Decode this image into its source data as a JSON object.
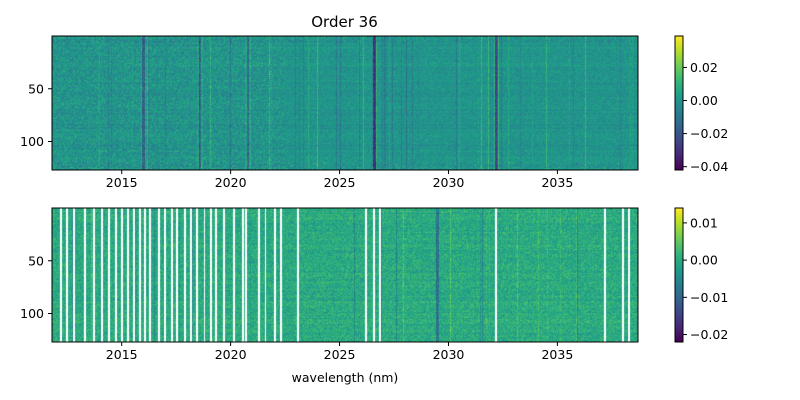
{
  "chart_data": [
    {
      "type": "heatmap",
      "title": "Order 36",
      "xlabel": "",
      "ylabel": "",
      "xlim": [
        2011.8,
        2038.7
      ],
      "ylim": [
        127,
        0
      ],
      "x_ticks": [
        2015,
        2020,
        2025,
        2030,
        2035
      ],
      "x_tick_labels": [
        "2015",
        "2020",
        "2025",
        "2030",
        "2035"
      ],
      "y_ticks": [
        50,
        100
      ],
      "y_tick_labels": [
        "50",
        "100"
      ],
      "colormap": "viridis",
      "colorbar": {
        "range": [
          -0.042,
          0.039
        ],
        "ticks": [
          0.02,
          0.0,
          -0.02,
          -0.04
        ],
        "tick_labels": [
          "0.02",
          "0.00",
          "−0.02",
          "−0.04"
        ]
      },
      "features": [
        {
          "wavelength": 2026.6,
          "strength": -0.035,
          "note": "strong absorption with bright edges"
        },
        {
          "wavelength": 2032.2,
          "strength": -0.03,
          "note": "strong absorption"
        },
        {
          "wavelength": 2016.0,
          "strength": -0.02,
          "note": "absorption"
        },
        {
          "wavelength": 2020.8,
          "strength": -0.015,
          "note": "absorption"
        },
        {
          "wavelength": 2018.6,
          "strength": -0.015,
          "note": "absorption"
        }
      ]
    },
    {
      "type": "heatmap",
      "title": "",
      "xlabel": "wavelength (nm)",
      "ylabel": "",
      "xlim": [
        2011.8,
        2038.7
      ],
      "ylim": [
        127,
        0
      ],
      "x_ticks": [
        2015,
        2020,
        2025,
        2030,
        2035
      ],
      "x_tick_labels": [
        "2015",
        "2020",
        "2025",
        "2030",
        "2035"
      ],
      "y_ticks": [
        50,
        100
      ],
      "y_tick_labels": [
        "50",
        "100"
      ],
      "colormap": "viridis",
      "colorbar": {
        "range": [
          -0.022,
          0.014
        ],
        "ticks": [
          0.01,
          0.0,
          -0.01,
          -0.02
        ],
        "tick_labels": [
          "0.01",
          "0.00",
          "−0.01",
          "−0.02"
        ]
      },
      "masked_wavelengths": [
        2012.2,
        2012.5,
        2012.8,
        2013.3,
        2013.75,
        2014.1,
        2014.4,
        2014.75,
        2015.0,
        2015.3,
        2015.55,
        2015.85,
        2016.05,
        2016.3,
        2016.7,
        2017.0,
        2017.3,
        2017.55,
        2017.9,
        2018.2,
        2018.45,
        2018.8,
        2019.1,
        2019.35,
        2019.7,
        2020.15,
        2020.55,
        2020.7,
        2021.3,
        2021.6,
        2022.05,
        2022.3,
        2023.1,
        2026.2,
        2026.6,
        2026.85,
        2032.2,
        2037.2,
        2038.0,
        2038.3
      ],
      "features": [
        {
          "wavelength": 2029.5,
          "strength": -0.01,
          "note": "weak absorption"
        },
        {
          "wavelength": 2026.9,
          "strength": -0.008,
          "note": "weak absorption"
        }
      ]
    }
  ]
}
